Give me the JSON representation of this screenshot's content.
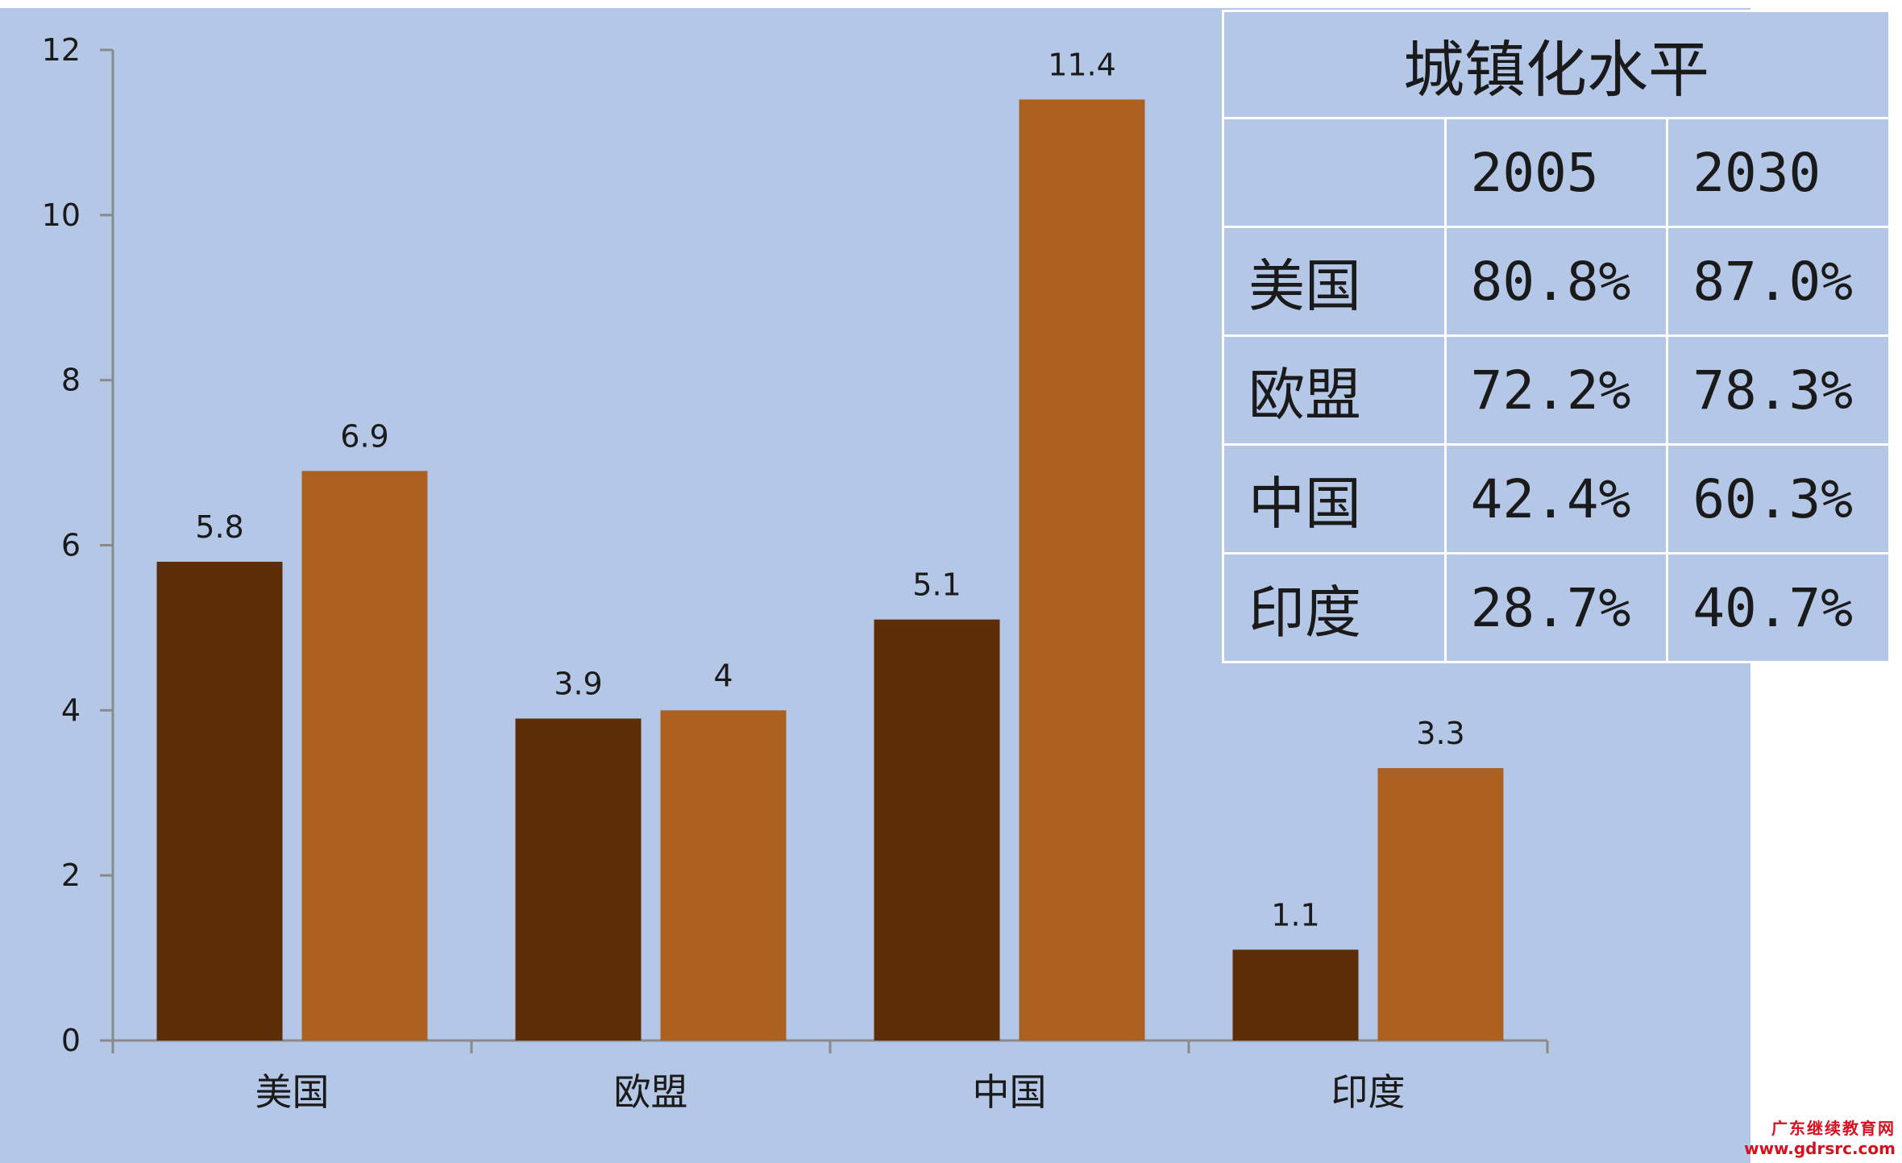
{
  "chart_data": {
    "type": "bar",
    "categories": [
      "美国",
      "欧盟",
      "中国",
      "印度"
    ],
    "series": [
      {
        "values": [
          5.8,
          3.9,
          5.1,
          1.1
        ],
        "color": "#5c2d06"
      },
      {
        "values": [
          6.9,
          4,
          11.4,
          3.3
        ],
        "color": "#ad6121"
      }
    ],
    "data_labels": [
      [
        "5.8",
        "3.9",
        "5.1",
        "1.1"
      ],
      [
        "6.9",
        "4",
        "11.4",
        "3.3"
      ]
    ],
    "yticks": [
      "0",
      "2",
      "4",
      "6",
      "8",
      "10",
      "12"
    ],
    "ylim": [
      0,
      12
    ],
    "grid": false,
    "legend": "none"
  },
  "table": {
    "title": "城镇化水平",
    "years": [
      "2005",
      "2030"
    ],
    "rows": [
      {
        "label": "美国",
        "v2005": "80.8%",
        "v2030": "87.0%"
      },
      {
        "label": "欧盟",
        "v2005": "72.2%",
        "v2030": "78.3%"
      },
      {
        "label": "中国",
        "v2005": "42.4%",
        "v2030": "60.3%"
      },
      {
        "label": "印度",
        "v2005": "28.7%",
        "v2030": "40.7%"
      }
    ]
  },
  "watermark": {
    "line1": "广东继续教育网",
    "line2": "www.gdrsrc.com"
  },
  "colors": {
    "background": "#b4c7e7",
    "axis": "#8a8a8a"
  }
}
